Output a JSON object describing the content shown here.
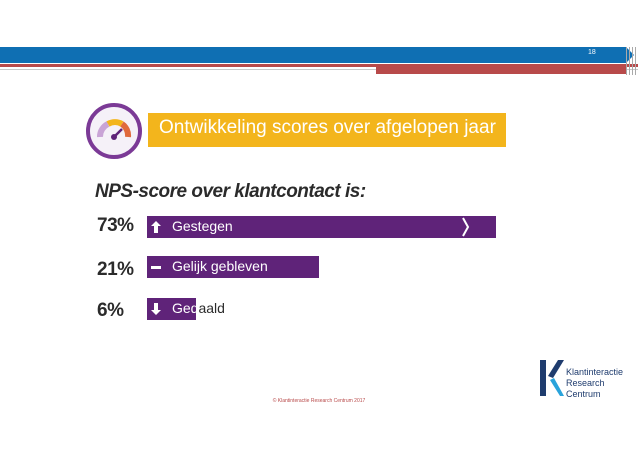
{
  "slide": {
    "page_number": "18",
    "title": "Ontwikkeling scores over afgelopen jaar",
    "footer": "© Klantinteractie Research Centrum 2017",
    "logo_lines": [
      "Klantinteractie",
      "Research",
      "Centrum"
    ]
  },
  "colors": {
    "bar": "#5f2379",
    "title_band": "#f3b51c",
    "header_bar": "#0f6fb3",
    "accent_red": "#b84a4a"
  },
  "icons": [
    "gauge-icon",
    "arrow-up-icon",
    "minus-icon",
    "arrow-down-icon"
  ],
  "chart_data": {
    "type": "bar",
    "orientation": "horizontal",
    "title": "NPS-score over klantcontact is:",
    "categories": [
      "Gestegen",
      "Gelijk gebleven",
      "Gedaald"
    ],
    "values": [
      73,
      21,
      6
    ],
    "value_labels": [
      "73%",
      "21%",
      "6%"
    ],
    "unit": "%",
    "xlim": [
      0,
      100
    ],
    "axis_break_on_first_bar": true,
    "grid": false,
    "legend": "none"
  }
}
